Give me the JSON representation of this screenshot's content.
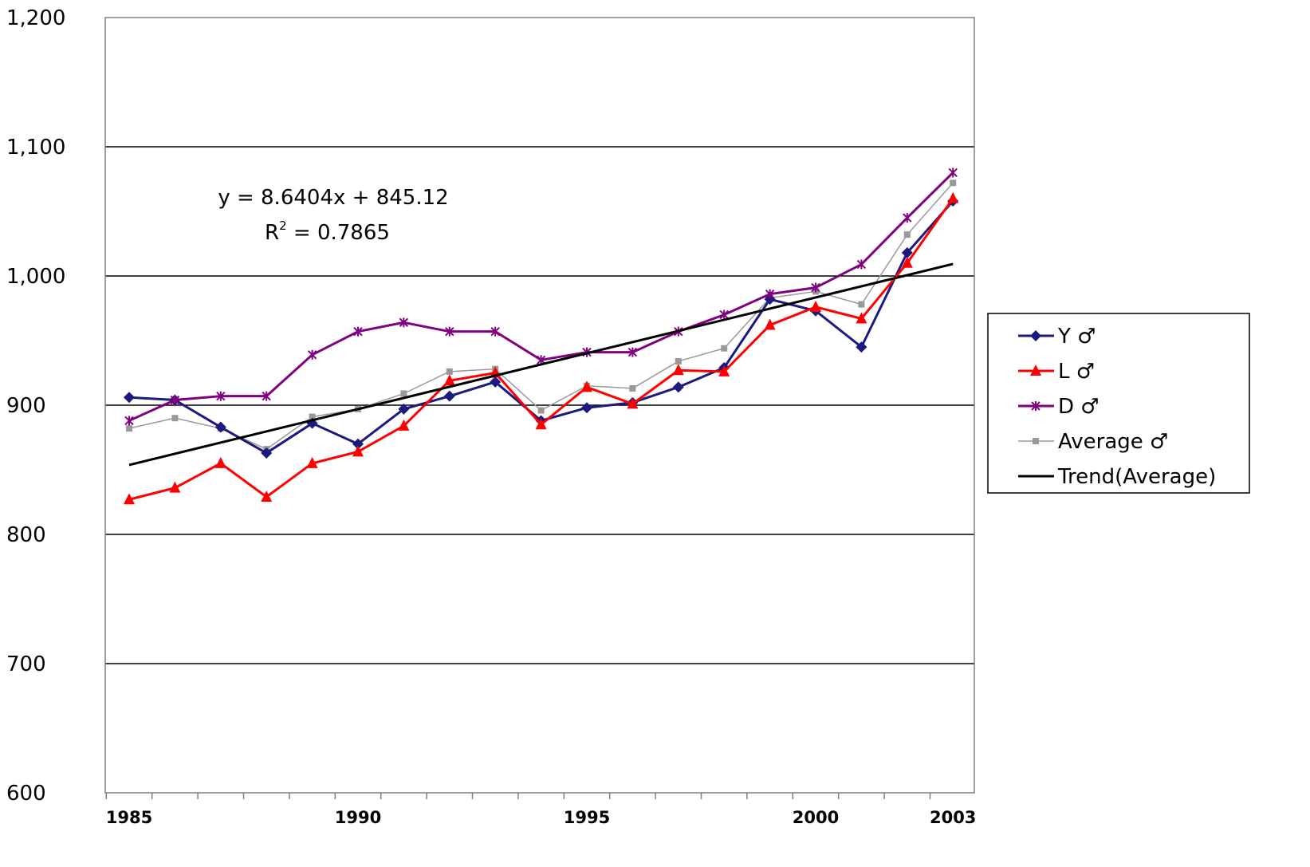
{
  "chart_data": {
    "type": "line",
    "x": [
      1985,
      1986,
      1987,
      1988,
      1989,
      1990,
      1991,
      1992,
      1993,
      1994,
      1995,
      1996,
      1997,
      1998,
      1999,
      2000,
      2001,
      2002,
      2003
    ],
    "xticks": [
      1985,
      1990,
      1995,
      2000,
      2003
    ],
    "xtick_labels": [
      "1985",
      "1990",
      "1995",
      "2000",
      "2003"
    ],
    "ylim": [
      600,
      1200
    ],
    "yticks": [
      600,
      700,
      800,
      900,
      1000,
      1100,
      1200
    ],
    "ytick_labels": [
      "600",
      "700",
      "800",
      "900",
      "1,000",
      "1,100",
      "1,200"
    ],
    "grid": "horizontal",
    "legend_position": "right",
    "series": [
      {
        "name": "Y ♂",
        "color": "#1a1a80",
        "marker": "diamond",
        "values": [
          906,
          904,
          883,
          863,
          886,
          870,
          897,
          907,
          918,
          888,
          898,
          902,
          914,
          929,
          982,
          973,
          945,
          1018,
          1058
        ]
      },
      {
        "name": "L ♂",
        "color": "#ff0000",
        "marker": "triangle",
        "values": [
          827,
          836,
          855,
          829,
          855,
          864,
          884,
          919,
          925,
          885,
          914,
          901,
          927,
          926,
          962,
          976,
          967,
          1010,
          1060
        ]
      },
      {
        "name": "D ♂",
        "color": "#800080",
        "marker": "cross",
        "values": [
          888,
          904,
          907,
          907,
          939,
          957,
          964,
          957,
          957,
          935,
          941,
          941,
          957,
          970,
          986,
          991,
          1009,
          1045,
          1080
        ]
      },
      {
        "name": "Average ♂",
        "color": "#999999",
        "marker": "square",
        "values": [
          882,
          890,
          882,
          866,
          891,
          897,
          909,
          926,
          928,
          896,
          915,
          913,
          934,
          944,
          983,
          988,
          978,
          1032,
          1072
        ]
      }
    ],
    "trend": {
      "name": "Trend(Average)",
      "color": "#000000",
      "slope": 8.6404,
      "intercept": 845.12,
      "equation": "y = 8.6404x + 845.12",
      "r2_label": "R",
      "r2_sup": "2",
      "r2_value": " = 0.7865"
    }
  }
}
